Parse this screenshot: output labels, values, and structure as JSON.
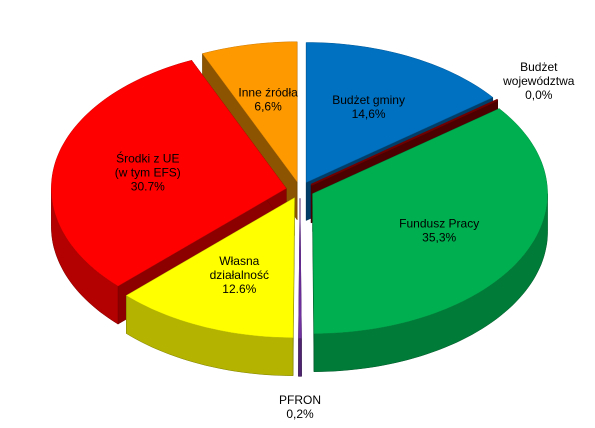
{
  "chart_data": {
    "type": "pie3d",
    "categories": [
      "Budżet gminy",
      "Budżet\nwojewództwa",
      "Fundusz Pracy",
      "PFRON",
      "Własna\ndziałalność",
      "Środki z UE\n(w tym EFS)",
      "Inne źródła"
    ],
    "values": [
      14.6,
      0.0,
      35.3,
      0.2,
      12.6,
      30.7,
      6.6
    ],
    "value_labels": [
      "14,6%",
      "0,0%",
      "35,3%",
      "0,2%",
      "12.6%",
      "30.7%",
      "6,6%"
    ],
    "colors": [
      "#0070c0",
      "#8b0000",
      "#00b050",
      "#7030a0",
      "#ffff00",
      "#ff0000",
      "#ff9900"
    ]
  }
}
